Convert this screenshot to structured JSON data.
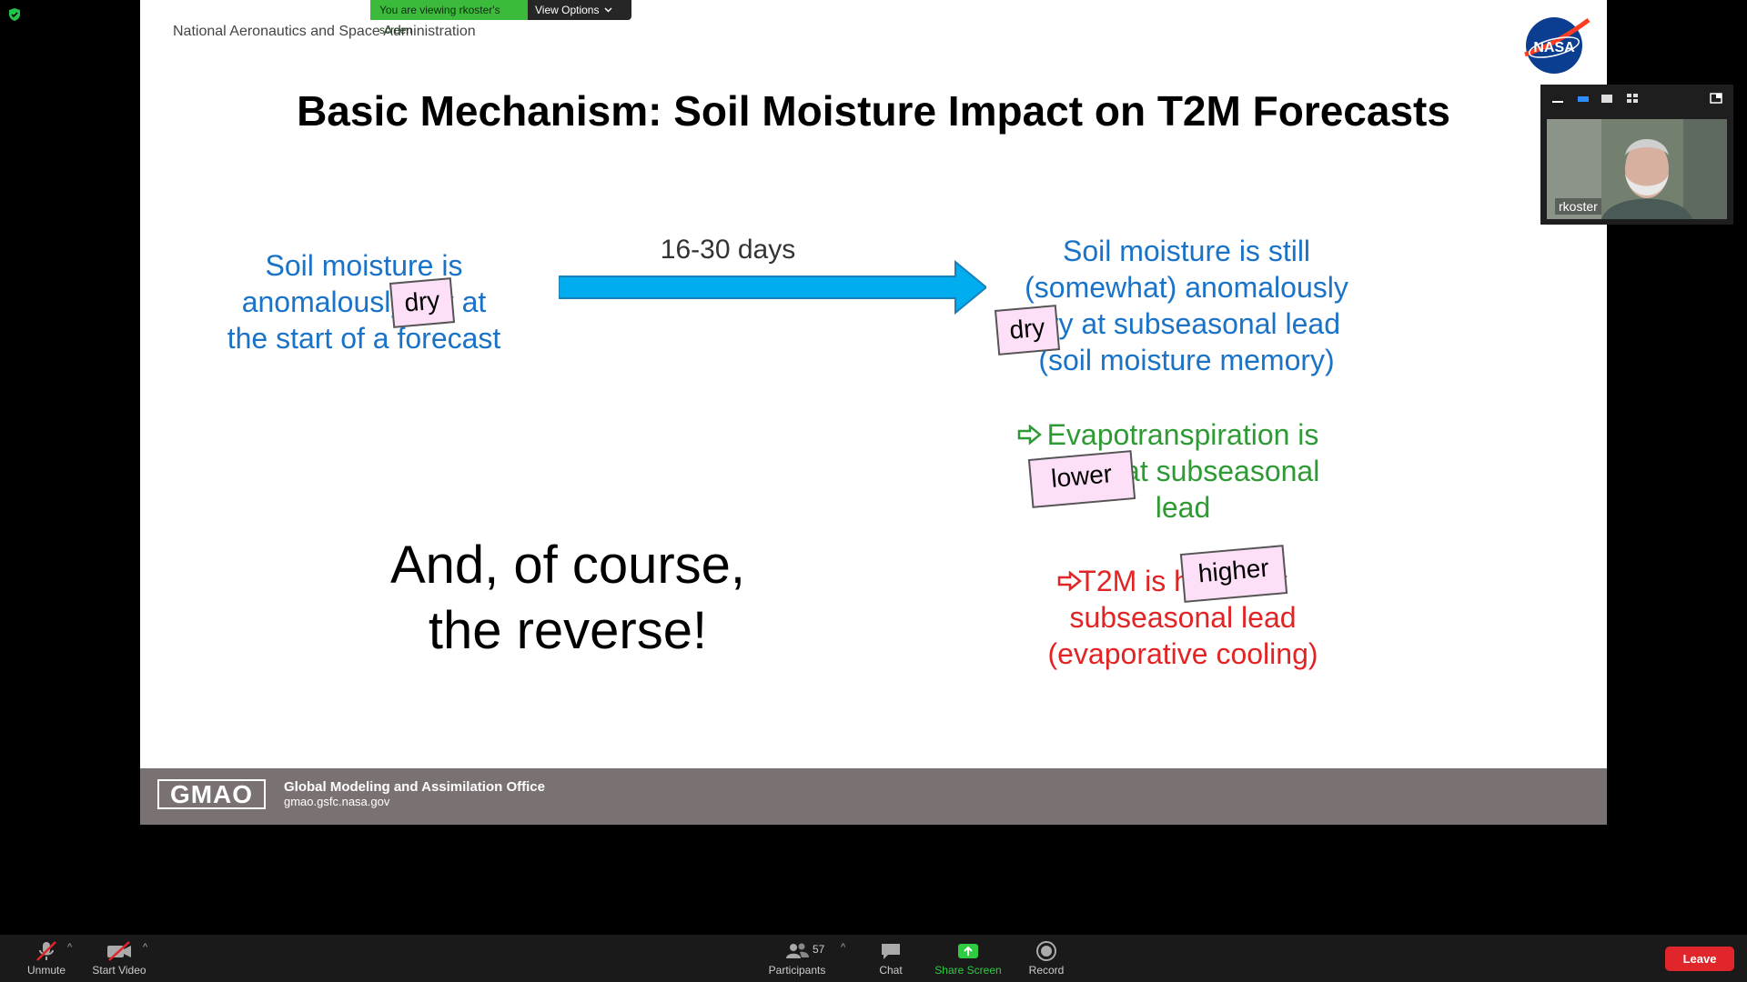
{
  "banner": {
    "message": "You are viewing rkoster's screen",
    "options_label": "View Options"
  },
  "slide": {
    "org": "National Aeronautics and Space Administration",
    "logo_text": "NASA",
    "title": "Basic Mechanism: Soil Moisture Impact on T2M Forecasts",
    "left_lines": [
      "Soil moisture is",
      "anomalously dry at",
      "the start of a forecast"
    ],
    "days_label": "16-30 days",
    "right_lines": [
      "Soil moisture is still",
      "(somewhat) anomalously",
      "dry at subseasonal lead",
      "(soil moisture memory)"
    ],
    "evap_lines": [
      "Evapotranspiration is",
      "lower at subseasonal",
      "lead"
    ],
    "t2m_lines": [
      "T2M is higher at",
      "subseasonal lead",
      "(evaporative cooling)"
    ],
    "tags": {
      "dry1": "dry",
      "dry2": "dry",
      "lower": "lower",
      "higher": "higher"
    },
    "reverse_lines": [
      "And, of course,",
      "the reverse!"
    ],
    "footer": {
      "logo": "GMAO",
      "name": "Global Modeling and Assimilation Office",
      "url": "gmao.gsfc.nasa.gov"
    },
    "colors": {
      "blue": "#1a73c7",
      "green": "#2e9a34",
      "red": "#e22424",
      "arrow": "#00aeef",
      "tag_bg": "#fde0f8"
    }
  },
  "participant": {
    "name": "rkoster"
  },
  "toolbar": {
    "unmute": "Unmute",
    "start_video": "Start Video",
    "participants": "Participants",
    "participant_count": "57",
    "chat": "Chat",
    "share_screen": "Share Screen",
    "record": "Record",
    "leave": "Leave"
  },
  "icons": [
    "shield-icon",
    "chevron-down-icon",
    "nasa-logo",
    "right-arrow",
    "pointer-arrow-icon",
    "mic-muted-icon",
    "video-off-icon",
    "participants-icon",
    "chat-icon",
    "share-screen-icon",
    "record-icon"
  ]
}
